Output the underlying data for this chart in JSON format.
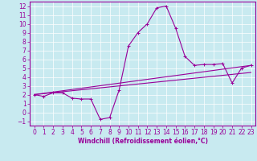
{
  "xlabel": "Windchill (Refroidissement éolien,°C)",
  "bg_color": "#c8eaf0",
  "line_color": "#990099",
  "xlim": [
    -0.5,
    23.5
  ],
  "ylim": [
    -1.5,
    12.5
  ],
  "xticks": [
    0,
    1,
    2,
    3,
    4,
    5,
    6,
    7,
    8,
    9,
    10,
    11,
    12,
    13,
    14,
    15,
    16,
    17,
    18,
    19,
    20,
    21,
    22,
    23
  ],
  "yticks": [
    -1,
    0,
    1,
    2,
    3,
    4,
    5,
    6,
    7,
    8,
    9,
    10,
    11,
    12
  ],
  "main_x": [
    0,
    1,
    2,
    3,
    4,
    5,
    6,
    7,
    8,
    9,
    10,
    11,
    12,
    13,
    14,
    15,
    16,
    17,
    18,
    19,
    20,
    21,
    22,
    23
  ],
  "main_y": [
    2.0,
    1.8,
    2.2,
    2.2,
    1.6,
    1.5,
    1.5,
    -0.8,
    -0.6,
    2.5,
    7.5,
    9.0,
    10.0,
    11.8,
    12.0,
    9.5,
    6.3,
    5.3,
    5.4,
    5.4,
    5.5,
    3.3,
    5.0,
    5.3
  ],
  "line1_x": [
    0,
    23
  ],
  "line1_y": [
    2.0,
    4.5
  ],
  "line2_x": [
    0,
    23
  ],
  "line2_y": [
    2.0,
    5.3
  ],
  "tick_fontsize": 5.5,
  "xlabel_fontsize": 5.5
}
